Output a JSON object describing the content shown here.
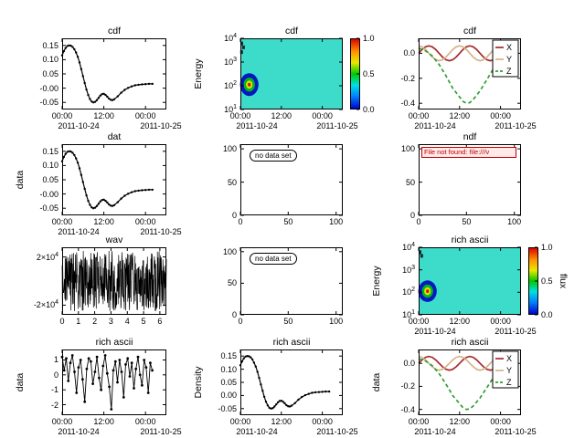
{
  "colors": {
    "background": "#ffffff",
    "spectrogram_bg": "#3ddcca",
    "error_red": "#c00000"
  },
  "shared": {
    "cdf_points": [
      [
        0,
        0.115
      ],
      [
        0.5,
        0.13
      ],
      [
        1,
        0.141
      ],
      [
        1.5,
        0.148
      ],
      [
        2,
        0.15
      ],
      [
        2.5,
        0.149
      ],
      [
        3,
        0.145
      ],
      [
        3.5,
        0.137
      ],
      [
        4,
        0.125
      ],
      [
        4.5,
        0.11
      ],
      [
        5,
        0.09
      ],
      [
        5.5,
        0.067
      ],
      [
        6,
        0.042
      ],
      [
        6.5,
        0.018
      ],
      [
        7,
        -0.005
      ],
      [
        7.5,
        -0.024
      ],
      [
        8,
        -0.038
      ],
      [
        8.5,
        -0.047
      ],
      [
        9,
        -0.05
      ],
      [
        9.5,
        -0.048
      ],
      [
        10,
        -0.042
      ],
      [
        10.5,
        -0.034
      ],
      [
        11,
        -0.026
      ],
      [
        11.5,
        -0.021
      ],
      [
        12,
        -0.02
      ],
      [
        12.5,
        -0.024
      ],
      [
        13,
        -0.03
      ],
      [
        13.5,
        -0.037
      ],
      [
        14,
        -0.041
      ],
      [
        14.5,
        -0.042
      ],
      [
        15,
        -0.039
      ],
      [
        16,
        -0.029
      ],
      [
        17,
        -0.016
      ],
      [
        18,
        -0.006
      ],
      [
        19,
        0.001
      ],
      [
        20,
        0.006
      ],
      [
        21,
        0.01
      ],
      [
        22,
        0.012
      ],
      [
        23,
        0.013
      ],
      [
        24,
        0.014
      ],
      [
        25,
        0.015
      ],
      [
        26,
        0.015
      ]
    ],
    "xyz_series": [
      {
        "name": "X",
        "color": "#a52a2a",
        "dash": false,
        "points": [
          [
            0,
            0
          ],
          [
            1,
            0.03
          ],
          [
            2,
            0.052
          ],
          [
            3,
            0.06
          ],
          [
            4,
            0.052
          ],
          [
            5,
            0.03
          ],
          [
            6,
            0
          ],
          [
            7,
            -0.03
          ],
          [
            8,
            -0.052
          ],
          [
            9,
            -0.06
          ],
          [
            10,
            -0.052
          ],
          [
            11,
            -0.03
          ],
          [
            12,
            0
          ],
          [
            13,
            0.03
          ],
          [
            14,
            0.052
          ],
          [
            15,
            0.06
          ],
          [
            16,
            0.052
          ],
          [
            17,
            0.03
          ],
          [
            18,
            0
          ],
          [
            19,
            -0.03
          ],
          [
            20,
            -0.052
          ],
          [
            21,
            -0.06
          ],
          [
            22,
            -0.052
          ],
          [
            23,
            -0.03
          ],
          [
            24,
            0
          ],
          [
            25,
            0.03
          ],
          [
            26,
            0.052
          ]
        ]
      },
      {
        "name": "Y",
        "color": "#d2b48c",
        "dash": false,
        "points": [
          [
            0,
            0.06
          ],
          [
            1,
            0.052
          ],
          [
            2,
            0.03
          ],
          [
            3,
            0
          ],
          [
            4,
            -0.03
          ],
          [
            5,
            -0.052
          ],
          [
            6,
            -0.06
          ],
          [
            7,
            -0.052
          ],
          [
            8,
            -0.03
          ],
          [
            9,
            0
          ],
          [
            10,
            0.03
          ],
          [
            11,
            0.052
          ],
          [
            12,
            0.06
          ],
          [
            13,
            0.052
          ],
          [
            14,
            0.03
          ],
          [
            15,
            0
          ],
          [
            16,
            -0.03
          ],
          [
            17,
            -0.052
          ],
          [
            18,
            -0.06
          ],
          [
            19,
            -0.052
          ],
          [
            20,
            -0.03
          ],
          [
            21,
            0
          ],
          [
            22,
            0.03
          ],
          [
            23,
            0.052
          ],
          [
            24,
            0.06
          ],
          [
            25,
            0.052
          ],
          [
            26,
            0.03
          ]
        ]
      },
      {
        "name": "Z",
        "color": "#2e9e2e",
        "dash": true,
        "points": [
          [
            0,
            0.04
          ],
          [
            2,
            0.02
          ],
          [
            4,
            -0.02
          ],
          [
            6,
            -0.09
          ],
          [
            8,
            -0.18
          ],
          [
            10,
            -0.28
          ],
          [
            12,
            -0.35
          ],
          [
            13,
            -0.385
          ],
          [
            14,
            -0.4
          ],
          [
            15,
            -0.395
          ],
          [
            16,
            -0.37
          ],
          [
            18,
            -0.3
          ],
          [
            20,
            -0.21
          ],
          [
            22,
            -0.12
          ],
          [
            24,
            -0.05
          ],
          [
            25,
            -0.02
          ],
          [
            26,
            0
          ]
        ]
      }
    ]
  },
  "chart_data": [
    {
      "name": "cdf-line",
      "type": "line",
      "title": "cdf",
      "ylabel": "",
      "xlim": [
        0,
        30
      ],
      "ylim": [
        -0.075,
        0.175
      ],
      "x_ticks": {
        "pos": [
          0,
          12,
          24
        ],
        "labels": [
          "00:00",
          "12:00",
          "00:00"
        ]
      },
      "x_dates": [
        "2011-10-24",
        "2011-10-25"
      ],
      "y_ticks": {
        "pos": [
          0.15,
          0.1,
          0.05,
          0,
          -0.05
        ],
        "labels": [
          "0.15",
          "0.10",
          "0.05",
          "-0.00",
          "-0.05"
        ]
      },
      "points_key": "cdf_points"
    },
    {
      "name": "cdf-spectrogram",
      "type": "spectrogram",
      "title": "cdf",
      "ylabel": "Energy",
      "xlim": [
        0,
        30
      ],
      "ylim": [
        1,
        4
      ],
      "x_ticks": {
        "pos": [
          0,
          12,
          24
        ],
        "labels": [
          "00:00",
          "12:00",
          "00:00"
        ]
      },
      "x_dates": [
        "2011-10-24",
        "2011-10-25"
      ],
      "y_ticks": {
        "pos": [
          4,
          3,
          2,
          1
        ],
        "labels": [
          "10^4",
          "10^3",
          "10^2",
          "10^1"
        ]
      },
      "bg": "#3ddcca",
      "blob": {
        "x": 2.6,
        "y": 2.05,
        "rx": 2.7,
        "ry": 0.48,
        "rings": [
          {
            "color": "#0018c0",
            "f": 1
          },
          {
            "color": "#00b428",
            "f": 0.62
          },
          {
            "color": "#dce000",
            "f": 0.36
          },
          {
            "color": "#cc1000",
            "f": 0.16
          }
        ]
      },
      "specks": [
        [
          0.4,
          3.78
        ],
        [
          0.9,
          3.62
        ],
        [
          0.35,
          3.42
        ]
      ],
      "colorbar": {
        "range": [
          0,
          1
        ],
        "ticks": {
          "pos": [
            1,
            0.5,
            0
          ],
          "labels": [
            "1.0",
            "0.5",
            "0.0"
          ]
        },
        "label": ""
      }
    },
    {
      "name": "cdf-xyz",
      "type": "multiline",
      "title": "cdf",
      "ylabel": "",
      "xlim": [
        0,
        30
      ],
      "ylim": [
        -0.45,
        0.12
      ],
      "x_ticks": {
        "pos": [
          0,
          12,
          24
        ],
        "labels": [
          "00:00",
          "12:00",
          "00:00"
        ]
      },
      "x_dates": [
        "2011-10-24",
        "2011-10-25"
      ],
      "y_ticks": {
        "pos": [
          0,
          -0.2,
          -0.4
        ],
        "labels": [
          "0.0",
          "-0.2",
          "-0.4"
        ]
      },
      "legend": true,
      "series_key": "xyz_series"
    },
    {
      "name": "dat-line",
      "type": "line",
      "title": "dat",
      "ylabel": "data",
      "xlim": [
        0,
        30
      ],
      "ylim": [
        -0.075,
        0.175
      ],
      "x_ticks": {
        "pos": [
          0,
          12,
          24
        ],
        "labels": [
          "00:00",
          "12:00",
          "00:00"
        ]
      },
      "x_dates": [
        "2011-10-24",
        "2011-10-25"
      ],
      "y_ticks": {
        "pos": [
          0.15,
          0.1,
          0.05,
          0,
          -0.05
        ],
        "labels": [
          "0.15",
          "0.10",
          "0.05",
          "-0.00",
          "-0.05"
        ]
      },
      "points_key": "cdf_points"
    },
    {
      "name": "no-data-1",
      "type": "empty",
      "title": "",
      "ylabel": "",
      "note": "no data set",
      "xlim": [
        0,
        107
      ],
      "ylim": [
        0,
        107
      ],
      "x_ticks": {
        "pos": [
          0,
          50,
          100
        ],
        "labels": [
          "0",
          "50",
          "100"
        ]
      },
      "y_ticks": {
        "pos": [
          100,
          50,
          0
        ],
        "labels": [
          "100",
          "50",
          "0"
        ]
      }
    },
    {
      "name": "ndf-error",
      "type": "empty",
      "title": "ndf",
      "ylabel": "",
      "error": "File not found: file:///v",
      "xlim": [
        0,
        107
      ],
      "ylim": [
        0,
        107
      ],
      "x_ticks": {
        "pos": [
          0,
          50,
          100
        ],
        "labels": [
          "0",
          "50",
          "100"
        ]
      },
      "y_ticks": {
        "pos": [
          100,
          50,
          0
        ],
        "labels": [
          "100",
          "50",
          "0"
        ]
      }
    },
    {
      "name": "wav-waveform",
      "type": "waveform",
      "title": "wav",
      "ylabel": "",
      "xlim": [
        0,
        6.4
      ],
      "ylim": [
        -28000,
        28000
      ],
      "x_ticks": {
        "pos": [
          0,
          1,
          2,
          3,
          4,
          5,
          6
        ],
        "labels": [
          "0",
          "1",
          "2",
          "3",
          "4",
          "5",
          "6"
        ]
      },
      "y_ticks": {
        "pos": [
          20000,
          -20000
        ],
        "labels": [
          "2×10^4",
          "-2×10^4"
        ]
      },
      "noise": {
        "amplitude": 25000,
        "n": 420
      }
    },
    {
      "name": "no-data-2",
      "type": "empty",
      "title": "",
      "ylabel": "",
      "note": "no data set",
      "xlim": [
        0,
        107
      ],
      "ylim": [
        0,
        107
      ],
      "x_ticks": {
        "pos": [
          0,
          50,
          100
        ],
        "labels": [
          "0",
          "50",
          "100"
        ]
      },
      "y_ticks": {
        "pos": [
          100,
          50,
          0
        ],
        "labels": [
          "100",
          "50",
          "0"
        ]
      }
    },
    {
      "name": "richascii-spectrogram",
      "type": "spectrogram",
      "title": "rich ascii",
      "ylabel": "Energy",
      "xlim": [
        0,
        30
      ],
      "ylim": [
        1,
        4
      ],
      "x_ticks": {
        "pos": [
          0,
          12,
          24
        ],
        "labels": [
          "00:00",
          "12:00",
          "00:00"
        ]
      },
      "x_dates": [
        "2011-10-24",
        "2011-10-25"
      ],
      "y_ticks": {
        "pos": [
          4,
          3,
          2,
          1
        ],
        "labels": [
          "10^4",
          "10^3",
          "10^2",
          "10^1"
        ]
      },
      "bg": "#3ddcca",
      "blob": {
        "x": 2.6,
        "y": 2.05,
        "rx": 2.7,
        "ry": 0.48,
        "rings": [
          {
            "color": "#0018c0",
            "f": 1
          },
          {
            "color": "#00b428",
            "f": 0.62
          },
          {
            "color": "#dce000",
            "f": 0.36
          },
          {
            "color": "#cc1000",
            "f": 0.16
          }
        ]
      },
      "specks": [
        [
          0.4,
          3.78
        ],
        [
          0.9,
          3.62
        ]
      ],
      "colorbar": {
        "range": [
          0,
          1
        ],
        "ticks": {
          "pos": [
            1,
            0.5,
            0
          ],
          "labels": [
            "1.0",
            "0.5",
            "0.0"
          ]
        },
        "label": "flux"
      }
    },
    {
      "name": "richascii-scatter",
      "type": "scatterline",
      "title": "rich ascii",
      "ylabel": "data",
      "xlim": [
        0,
        30
      ],
      "ylim": [
        -2.7,
        1.7
      ],
      "x_ticks": {
        "pos": [
          0,
          12,
          24
        ],
        "labels": [
          "00:00",
          "12:00",
          "00:00"
        ]
      },
      "x_dates": [
        "2011-10-24",
        "2011-10-25"
      ],
      "y_ticks": {
        "pos": [
          1,
          0,
          -1,
          -2
        ],
        "labels": [
          "1",
          "0",
          "-1",
          "-2"
        ]
      },
      "x_start": 0,
      "x_step": 0.59,
      "values": [
        1.2,
        0.3,
        1.1,
        -0.4,
        0.8,
        1.3,
        0.2,
        -1.2,
        0.5,
        1.0,
        -0.3,
        -1.8,
        0.4,
        1.1,
        0.9,
        -0.6,
        0.2,
        1.2,
        -0.2,
        -1.0,
        0.6,
        1.3,
        0.1,
        -0.8,
        -2.3,
        0.3,
        0.9,
        -0.5,
        1.0,
        0.2,
        -1.5,
        0.7,
        1.1,
        -0.1,
        0.8,
        -0.9,
        0.4,
        1.2,
        0.0,
        -0.7,
        1.0,
        0.5,
        -1.2,
        0.8,
        0.3
      ]
    },
    {
      "name": "richascii-density",
      "type": "line",
      "title": "rich ascii",
      "ylabel": "Density",
      "xlim": [
        0,
        30
      ],
      "ylim": [
        -0.075,
        0.175
      ],
      "x_ticks": {
        "pos": [
          0,
          12,
          24
        ],
        "labels": [
          "00:00",
          "12:00",
          "00:00"
        ]
      },
      "x_dates": [
        "2011-10-24",
        "2011-10-25"
      ],
      "y_ticks": {
        "pos": [
          0.15,
          0.1,
          0.05,
          0,
          -0.05
        ],
        "labels": [
          "0.15",
          "0.10",
          "0.05",
          "0.00",
          "-0.05"
        ]
      },
      "points_key": "cdf_points"
    },
    {
      "name": "richascii-xyz",
      "type": "multiline",
      "title": "rich ascii",
      "ylabel": "data",
      "xlim": [
        0,
        30
      ],
      "ylim": [
        -0.45,
        0.12
      ],
      "x_ticks": {
        "pos": [
          0,
          12,
          24
        ],
        "labels": [
          "00:00",
          "12:00",
          "00:00"
        ]
      },
      "x_dates": [
        "2011-10-24",
        "2011-10-25"
      ],
      "y_ticks": {
        "pos": [
          0,
          -0.2,
          -0.4
        ],
        "labels": [
          "0.0",
          "-0.2",
          "-0.4"
        ]
      },
      "legend": true,
      "series_key": "xyz_series"
    }
  ]
}
